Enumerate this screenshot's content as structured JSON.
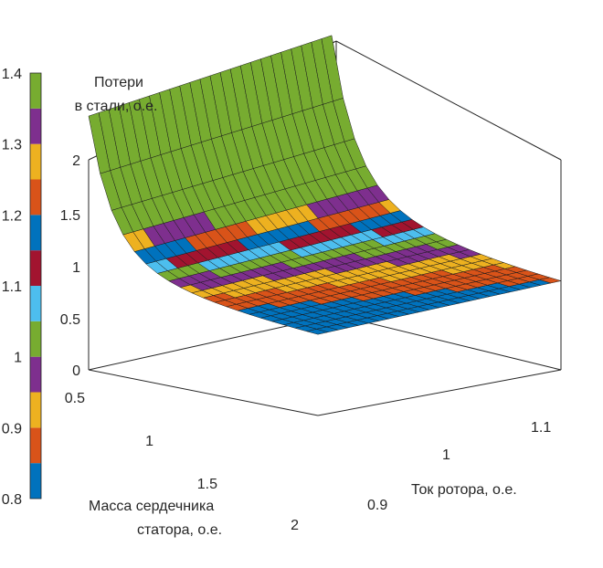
{
  "chart_data": {
    "type": "surface",
    "zlabel_lines": [
      "Потери",
      "в стали, о.е."
    ],
    "xlabel": "Ток ротора, о.е.",
    "ylabel_lines": [
      "Масса сердечника",
      "статора, о.е."
    ],
    "z_ticks": [
      "0",
      "0.5",
      "1",
      "1.5",
      "2"
    ],
    "x_ticks": [
      "0.9",
      "1",
      "1.1"
    ],
    "y_ticks": [
      "0.5",
      "1",
      "1.5",
      "2"
    ],
    "zlim": [
      0,
      2.2
    ],
    "xlim": [
      0.85,
      1.15
    ],
    "ylim": [
      0.45,
      2.0
    ],
    "colorbar": {
      "ticks": [
        "0.8",
        "0.9",
        "1",
        "1.1",
        "1.2",
        "1.3",
        "1.4"
      ],
      "range": [
        0.8,
        1.4
      ],
      "bands": [
        "#0072BD",
        "#D95319",
        "#EDB120",
        "#7E2F8E",
        "#77AC30",
        "#4DBEEE",
        "#A2142F",
        "#0072BD",
        "#D95319",
        "#EDB120",
        "#7E2F8E",
        "#77AC30"
      ]
    },
    "surface_summary": {
      "min_mass_edge_loss_range": [
        1.8,
        2.1
      ],
      "max_mass_edge_loss_range": [
        0.3,
        0.55
      ],
      "loss_at_mass_1": 1.0
    },
    "grid": true
  }
}
